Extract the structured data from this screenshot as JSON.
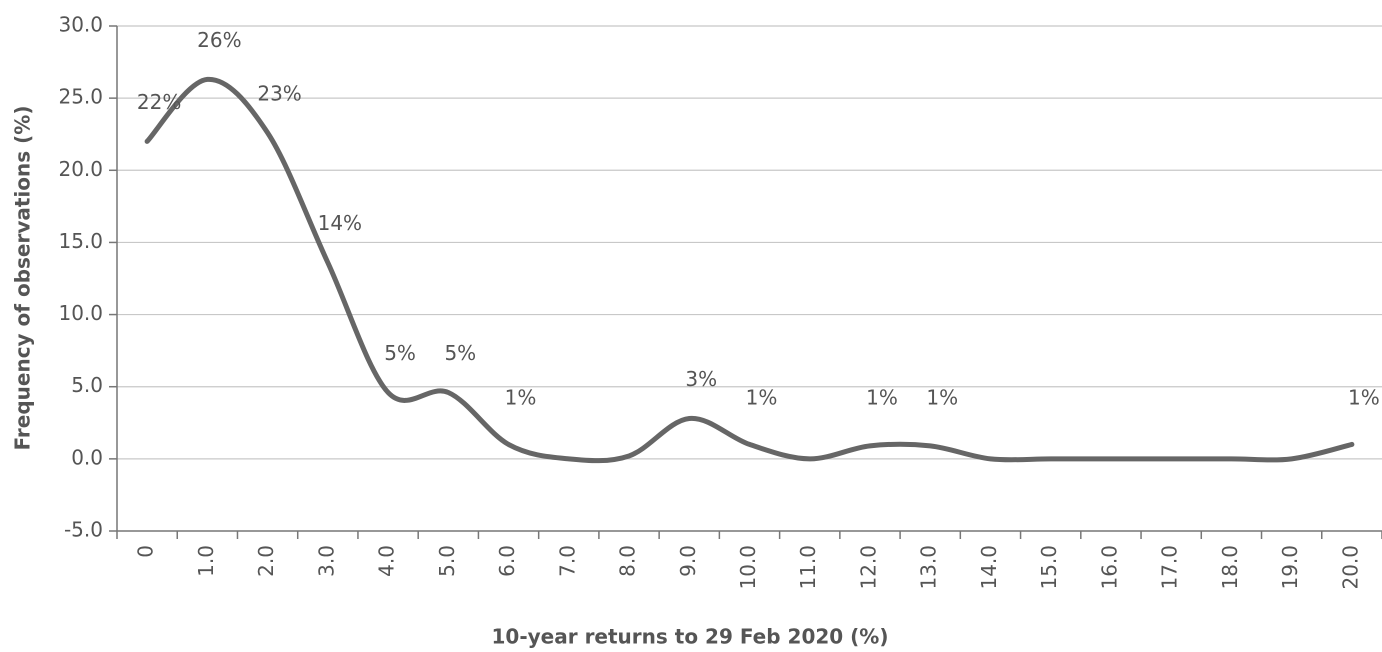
{
  "chart_data": {
    "type": "line",
    "x_label": "10-year returns to 29 Feb 2020 (%)",
    "y_label": "Frequency of observations (%)",
    "categories": [
      "0",
      "1.0",
      "2.0",
      "3.0",
      "4.0",
      "5.0",
      "6.0",
      "7.0",
      "8.0",
      "9.0",
      "10.0",
      "11.0",
      "12.0",
      "13.0",
      "14.0",
      "15.0",
      "16.0",
      "17.0",
      "18.0",
      "19.0",
      "20.0"
    ],
    "series": [
      {
        "color": "#666666",
        "values": [
          22,
          26.3,
          22.6,
          13.6,
          4.6,
          4.6,
          1,
          0,
          0.2,
          2.8,
          1,
          0,
          0.9,
          0.9,
          0,
          0,
          0,
          0,
          0,
          0,
          1
        ],
        "value_labels": [
          "22%",
          "26%",
          "23%",
          "14%",
          "5%",
          "5%",
          "1%",
          null,
          null,
          "3%",
          "1%",
          null,
          "1%",
          "1%",
          null,
          null,
          null,
          null,
          null,
          null,
          "1%"
        ]
      }
    ],
    "ylim": [
      -5,
      30
    ],
    "yticks": [
      {
        "value": -5,
        "label": "-5.0"
      },
      {
        "value": 0,
        "label": "0.0"
      },
      {
        "value": 5,
        "label": "5.0"
      },
      {
        "value": 10,
        "label": "10.0"
      },
      {
        "value": 15,
        "label": "15.0"
      },
      {
        "value": 20,
        "label": "20.0"
      },
      {
        "value": 25,
        "label": "25.0"
      },
      {
        "value": 30,
        "label": "30.0"
      }
    ],
    "grid": true
  }
}
